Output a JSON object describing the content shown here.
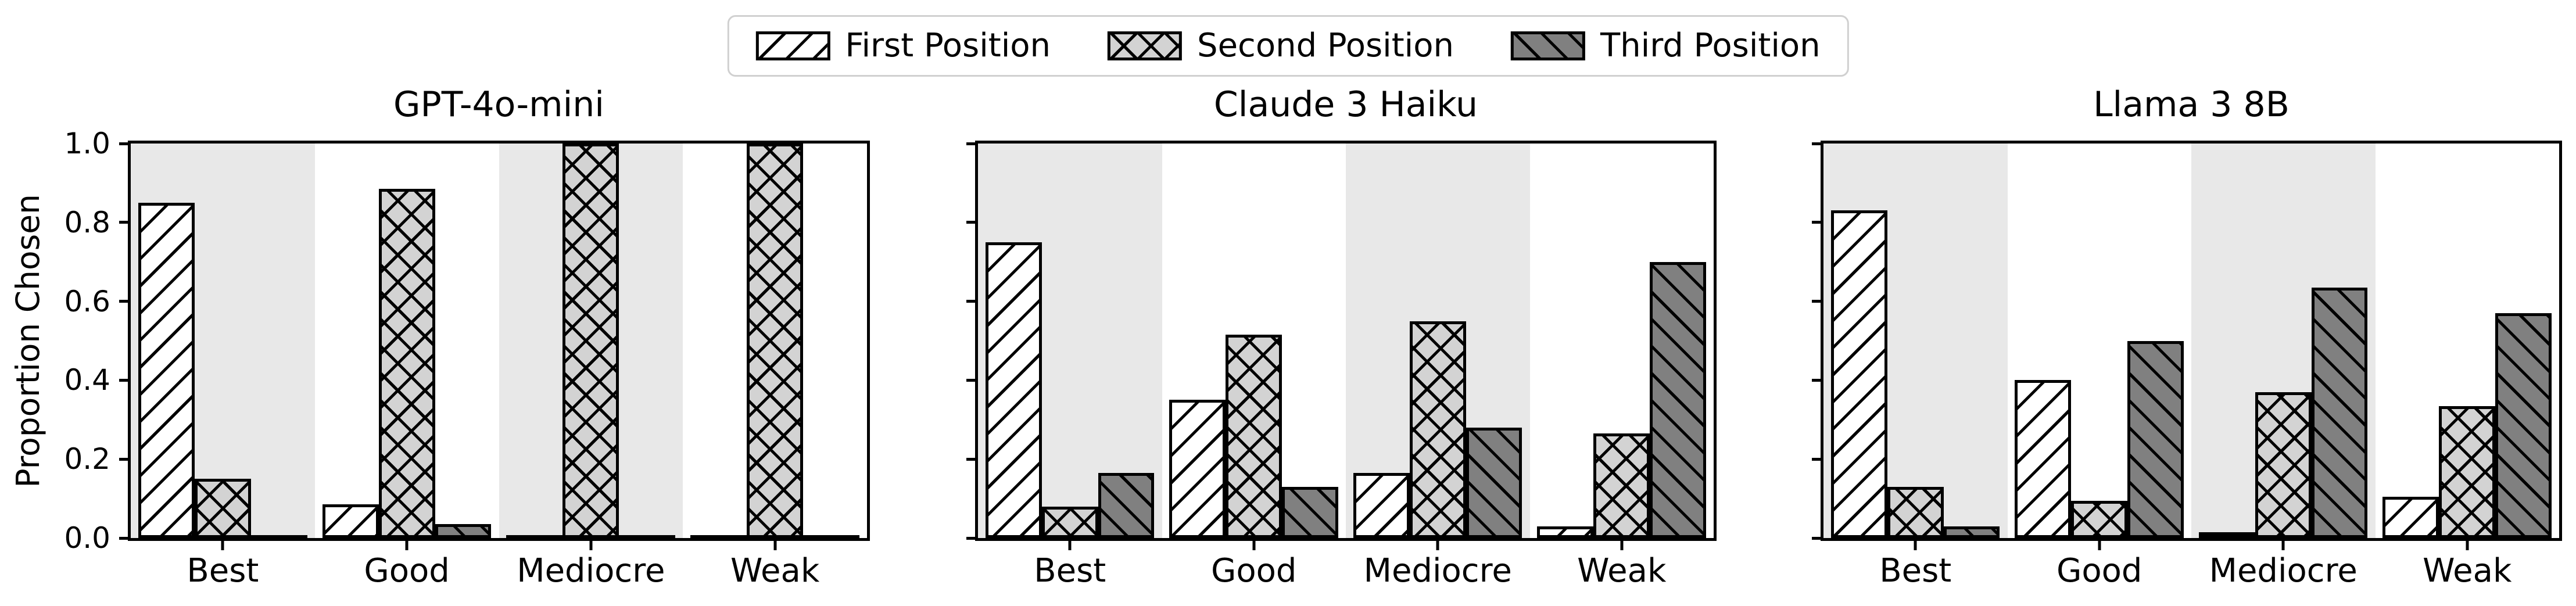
{
  "legend": {
    "items": [
      {
        "label": "First Position",
        "hatch": "/",
        "fill": "#ffffff"
      },
      {
        "label": "Second Position",
        "hatch": "x",
        "fill": "#d3d3d3"
      },
      {
        "label": "Third Position",
        "hatch": "\\",
        "fill": "#808080"
      }
    ]
  },
  "y_axis": {
    "label": "Proportion Chosen",
    "ticks": [
      "0.0",
      "0.2",
      "0.4",
      "0.6",
      "0.8",
      "1.0"
    ]
  },
  "colors": {
    "band": "#e8e8e8",
    "band_alt": "#ffffff",
    "edge": "#000000",
    "first_fill": "#ffffff",
    "second_fill": "#d3d3d3",
    "third_fill": "#808080"
  },
  "chart_data": [
    {
      "type": "bar",
      "title": "GPT-4o-mini",
      "categories": [
        "Best",
        "Good",
        "Mediocre",
        "Weak"
      ],
      "series": [
        {
          "name": "First Position",
          "values": [
            0.85,
            0.085,
            0.0,
            0.0
          ]
        },
        {
          "name": "Second Position",
          "values": [
            0.15,
            0.885,
            1.0,
            1.0
          ]
        },
        {
          "name": "Third Position",
          "values": [
            0.0,
            0.035,
            0.0,
            0.0
          ]
        }
      ],
      "ylabel": "Proportion Chosen",
      "ylim": [
        0,
        1
      ],
      "grid": false,
      "legend_position": "top-center-figure"
    },
    {
      "type": "bar",
      "title": "Claude 3 Haiku",
      "categories": [
        "Best",
        "Good",
        "Mediocre",
        "Weak"
      ],
      "series": [
        {
          "name": "First Position",
          "values": [
            0.75,
            0.35,
            0.165,
            0.03
          ]
        },
        {
          "name": "Second Position",
          "values": [
            0.08,
            0.515,
            0.55,
            0.265
          ]
        },
        {
          "name": "Third Position",
          "values": [
            0.165,
            0.13,
            0.28,
            0.7
          ]
        }
      ],
      "ylabel": "",
      "ylim": [
        0,
        1
      ],
      "grid": false
    },
    {
      "type": "bar",
      "title": "Llama 3 8B",
      "categories": [
        "Best",
        "Good",
        "Mediocre",
        "Weak"
      ],
      "series": [
        {
          "name": "First Position",
          "values": [
            0.83,
            0.4,
            0.005,
            0.105
          ]
        },
        {
          "name": "Second Position",
          "values": [
            0.13,
            0.095,
            0.37,
            0.335
          ]
        },
        {
          "name": "Third Position",
          "values": [
            0.03,
            0.5,
            0.635,
            0.57
          ]
        }
      ],
      "ylabel": "",
      "ylim": [
        0,
        1
      ],
      "grid": false
    }
  ]
}
